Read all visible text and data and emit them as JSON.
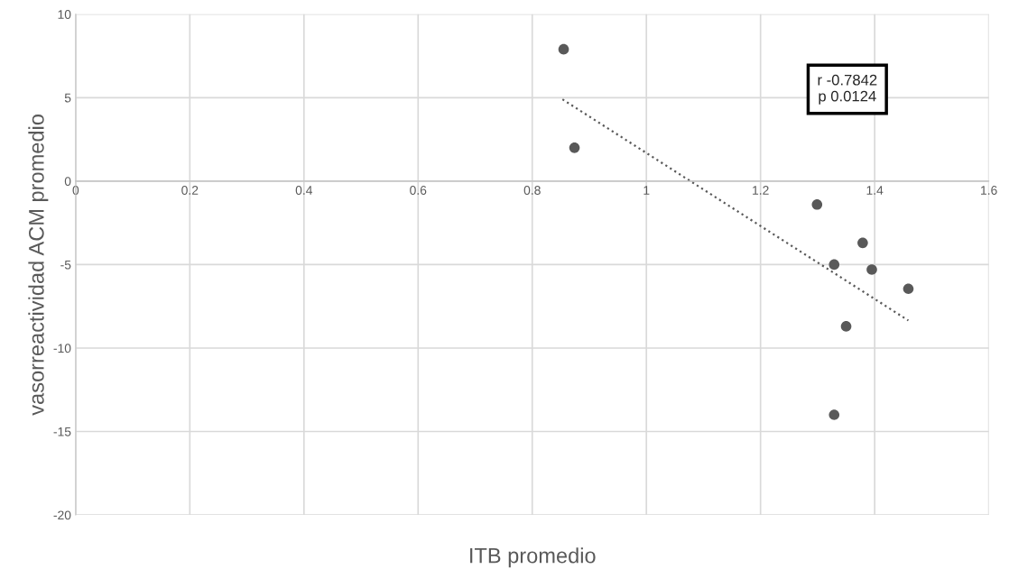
{
  "chart_data": {
    "type": "scatter",
    "xlabel": "ITB promedio",
    "ylabel": "vasorreactividad ACM promedio",
    "x": [
      0.855,
      0.874,
      1.299,
      1.379,
      1.329,
      1.395,
      1.459,
      1.35,
      1.329
    ],
    "series": [
      {
        "color": "#595959",
        "values": [
          7.9,
          2.0,
          -1.4,
          -3.7,
          -5.0,
          -5.3,
          -6.45,
          -8.7,
          -14.0
        ]
      },
      {
        "type": "line",
        "color": "#595959",
        "line_style": "dotted",
        "marker": "none",
        "x": [
          0.853,
          1.459
        ],
        "values": [
          4.9,
          -8.35
        ]
      }
    ],
    "xlim": [
      0,
      1.6
    ],
    "xticks": [
      0,
      0.2,
      0.4,
      0.6,
      0.8,
      1,
      1.2,
      1.4,
      1.6
    ],
    "ylim": [
      -20,
      10
    ],
    "yticks": [
      -20,
      -15,
      -10,
      -5,
      0,
      5,
      10
    ],
    "grid": true,
    "legend": false,
    "marker": "circle",
    "annotations": [
      "r -0.7842\np 0.0124"
    ]
  }
}
